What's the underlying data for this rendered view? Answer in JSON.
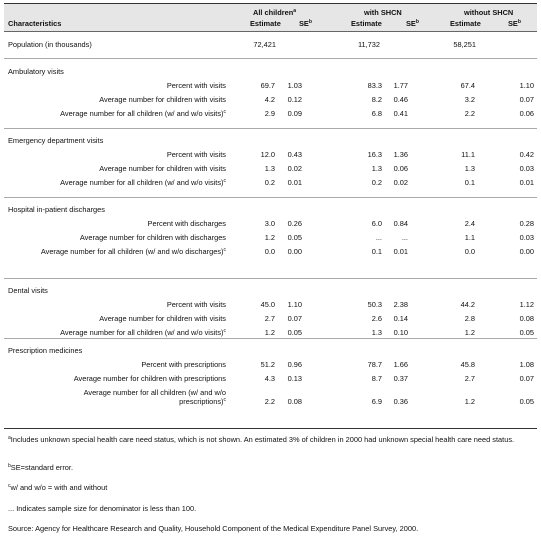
{
  "header": {
    "characteristics": "Characteristics",
    "group_all": "All children",
    "group_all_mark": "a",
    "group_shcn": "with SHCN",
    "group_noshcn": "without SHCN",
    "estimate": "Estimate",
    "se": "SE",
    "se_mark": "b"
  },
  "population": {
    "label": "Population (in thousands)",
    "all_est": "72,421",
    "shcn_est": "11,732",
    "noshcn_est": "58,251"
  },
  "sections": [
    {
      "title": "Ambulatory visits",
      "rows": [
        {
          "label": "Percent with visits",
          "v": [
            "69.7",
            "1.03",
            "83.3",
            "1.77",
            "67.4",
            "1.10"
          ]
        },
        {
          "label": "Average number for children with visits",
          "v": [
            "4.2",
            "0.12",
            "8.2",
            "0.46",
            "3.2",
            "0.07"
          ]
        },
        {
          "label": "Average number for all children (w/ and w/o visits)",
          "mark": "c",
          "v": [
            "2.9",
            "0.09",
            "6.8",
            "0.41",
            "2.2",
            "0.06"
          ]
        }
      ]
    },
    {
      "title": "Emergency department visits",
      "rows": [
        {
          "label": "Percent with visits",
          "v": [
            "12.0",
            "0.43",
            "16.3",
            "1.36",
            "11.1",
            "0.42"
          ]
        },
        {
          "label": "Average number for children with visits",
          "v": [
            "1.3",
            "0.02",
            "1.3",
            "0.06",
            "1.3",
            "0.03"
          ]
        },
        {
          "label": "Average number for all children (w/ and w/o visits)",
          "mark": "c",
          "v": [
            "0.2",
            "0.01",
            "0.2",
            "0.02",
            "0.1",
            "0.01"
          ]
        }
      ]
    },
    {
      "title": "Hospital in-patient discharges",
      "rows": [
        {
          "label": "Percent with discharges",
          "v": [
            "3.0",
            "0.26",
            "6.0",
            "0.84",
            "2.4",
            "0.28"
          ]
        },
        {
          "label": "Average number for children with discharges",
          "v": [
            "1.2",
            "0.05",
            "...",
            "...",
            "1.1",
            "0.03"
          ]
        },
        {
          "label": "Average number for all children (w/ and w/o discharges)",
          "mark": "c",
          "v": [
            "0.0",
            "0.00",
            "0.1",
            "0.01",
            "0.0",
            "0.00"
          ]
        }
      ]
    },
    {
      "title": "Dental visits",
      "rows": [
        {
          "label": "Percent with visits",
          "v": [
            "45.0",
            "1.10",
            "50.3",
            "2.38",
            "44.2",
            "1.12"
          ]
        },
        {
          "label": "Average number for children with visits",
          "v": [
            "2.7",
            "0.07",
            "2.6",
            "0.14",
            "2.8",
            "0.08"
          ]
        },
        {
          "label": "Average number for all children (w/ and w/o visits)",
          "mark": "c",
          "v": [
            "1.2",
            "0.05",
            "1.3",
            "0.10",
            "1.2",
            "0.05"
          ]
        }
      ]
    },
    {
      "title": "Prescription medicines",
      "rows": [
        {
          "label": "Percent with prescriptions",
          "v": [
            "51.2",
            "0.96",
            "78.7",
            "1.66",
            "45.8",
            "1.08"
          ]
        },
        {
          "label": "Average number for children with prescriptions",
          "v": [
            "4.3",
            "0.13",
            "8.7",
            "0.37",
            "2.7",
            "0.07"
          ]
        },
        {
          "label": "Average number for all children (w/ and w/o prescriptions)",
          "label_line1": "Average number for all children (w/ and w/o",
          "label_line2": "prescriptions)",
          "mark": "c",
          "v": [
            "2.2",
            "0.08",
            "6.9",
            "0.36",
            "1.2",
            "0.05"
          ]
        }
      ]
    }
  ],
  "footnotes": [
    {
      "mark": "a",
      "text": "Includes unknown special health care need status, which is not shown. An estimated 3% of children in 2000 had unknown special health care need status."
    },
    {
      "mark": "b",
      "text": "SE=standard error."
    },
    {
      "mark": "c",
      "text": "w/ and w/o = with and without"
    },
    {
      "mark": "",
      "text": "... Indicates sample size for denominator is less than 100."
    },
    {
      "mark": "",
      "text": "Source: Agency for Healthcare Research and Quality, Household Component of the Medical Expenditure Panel Survey, 2000."
    }
  ]
}
